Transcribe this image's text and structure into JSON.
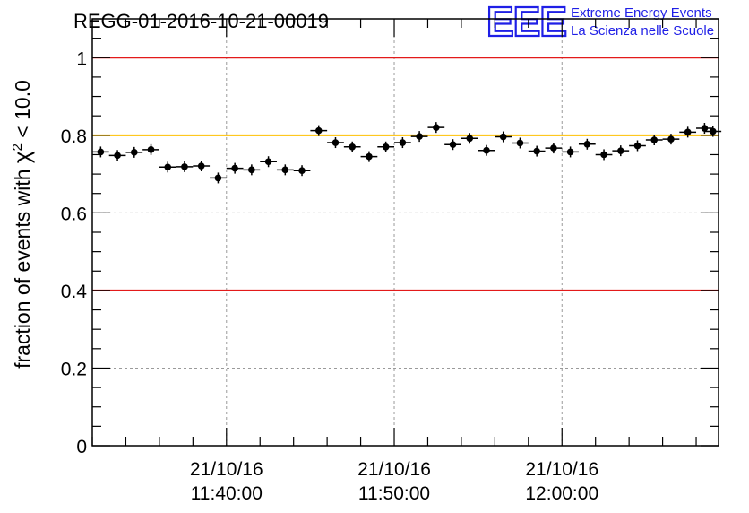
{
  "header": {
    "title": "REGG-01-2016-10-21-00019",
    "logo_text": "EEE",
    "logo_line1": "Extreme Energy Events",
    "logo_line2": "La Scienza nelle Scuole"
  },
  "chart_data": {
    "type": "scatter",
    "title": "REGG-01-2016-10-21-00019",
    "ylabel_prefix": "fraction of events with ",
    "ylabel_symbol": "χ",
    "ylabel_exponent": "2",
    "ylabel_suffix": " < 10.0",
    "ylim": [
      0,
      1.1
    ],
    "yticks": [
      {
        "value": 0,
        "label": "0"
      },
      {
        "value": 0.2,
        "label": "0.2"
      },
      {
        "value": 0.4,
        "label": "0.4"
      },
      {
        "value": 0.6,
        "label": "0.6"
      },
      {
        "value": 0.8,
        "label": "0.8"
      },
      {
        "value": 1,
        "label": "1"
      }
    ],
    "xlim": [
      "2016-10-21 11:32:00",
      "2016-10-21 12:09:20"
    ],
    "xticks": [
      {
        "value": "2016-10-21 11:40:00",
        "date": "21/10/16",
        "time": "11:40:00"
      },
      {
        "value": "2016-10-21 11:50:00",
        "date": "21/10/16",
        "time": "11:50:00"
      },
      {
        "value": "2016-10-21 12:00:00",
        "date": "21/10/16",
        "time": "12:00:00"
      }
    ],
    "grid": true,
    "reference_lines": [
      {
        "y": 1.0,
        "color": "#e31a1a"
      },
      {
        "y": 0.8,
        "color": "#ffc000"
      },
      {
        "y": 0.4,
        "color": "#e31a1a"
      }
    ],
    "marker_color": "#000000",
    "points": [
      {
        "x": "2016-10-21 11:32:30",
        "y": 0.757
      },
      {
        "x": "2016-10-21 11:33:30",
        "y": 0.748
      },
      {
        "x": "2016-10-21 11:34:30",
        "y": 0.756
      },
      {
        "x": "2016-10-21 11:35:30",
        "y": 0.763
      },
      {
        "x": "2016-10-21 11:36:30",
        "y": 0.718
      },
      {
        "x": "2016-10-21 11:37:30",
        "y": 0.719
      },
      {
        "x": "2016-10-21 11:38:30",
        "y": 0.721
      },
      {
        "x": "2016-10-21 11:39:30",
        "y": 0.69
      },
      {
        "x": "2016-10-21 11:40:30",
        "y": 0.715
      },
      {
        "x": "2016-10-21 11:41:30",
        "y": 0.711
      },
      {
        "x": "2016-10-21 11:42:30",
        "y": 0.732
      },
      {
        "x": "2016-10-21 11:43:30",
        "y": 0.711
      },
      {
        "x": "2016-10-21 11:44:30",
        "y": 0.709
      },
      {
        "x": "2016-10-21 11:45:30",
        "y": 0.812
      },
      {
        "x": "2016-10-21 11:46:30",
        "y": 0.781
      },
      {
        "x": "2016-10-21 11:47:30",
        "y": 0.77
      },
      {
        "x": "2016-10-21 11:48:30",
        "y": 0.745
      },
      {
        "x": "2016-10-21 11:49:30",
        "y": 0.77
      },
      {
        "x": "2016-10-21 11:50:30",
        "y": 0.781
      },
      {
        "x": "2016-10-21 11:51:30",
        "y": 0.797
      },
      {
        "x": "2016-10-21 11:52:30",
        "y": 0.82
      },
      {
        "x": "2016-10-21 11:53:30",
        "y": 0.776
      },
      {
        "x": "2016-10-21 11:54:30",
        "y": 0.792
      },
      {
        "x": "2016-10-21 11:55:30",
        "y": 0.761
      },
      {
        "x": "2016-10-21 11:56:30",
        "y": 0.796
      },
      {
        "x": "2016-10-21 11:57:30",
        "y": 0.78
      },
      {
        "x": "2016-10-21 11:58:30",
        "y": 0.759
      },
      {
        "x": "2016-10-21 11:59:30",
        "y": 0.767
      },
      {
        "x": "2016-10-21 12:00:30",
        "y": 0.757
      },
      {
        "x": "2016-10-21 12:01:30",
        "y": 0.777
      },
      {
        "x": "2016-10-21 12:02:30",
        "y": 0.75
      },
      {
        "x": "2016-10-21 12:03:30",
        "y": 0.76
      },
      {
        "x": "2016-10-21 12:04:30",
        "y": 0.773
      },
      {
        "x": "2016-10-21 12:05:30",
        "y": 0.788
      },
      {
        "x": "2016-10-21 12:06:30",
        "y": 0.79
      },
      {
        "x": "2016-10-21 12:07:30",
        "y": 0.808
      },
      {
        "x": "2016-10-21 12:08:30",
        "y": 0.818
      },
      {
        "x": "2016-10-21 12:09:00",
        "y": 0.81
      }
    ]
  }
}
